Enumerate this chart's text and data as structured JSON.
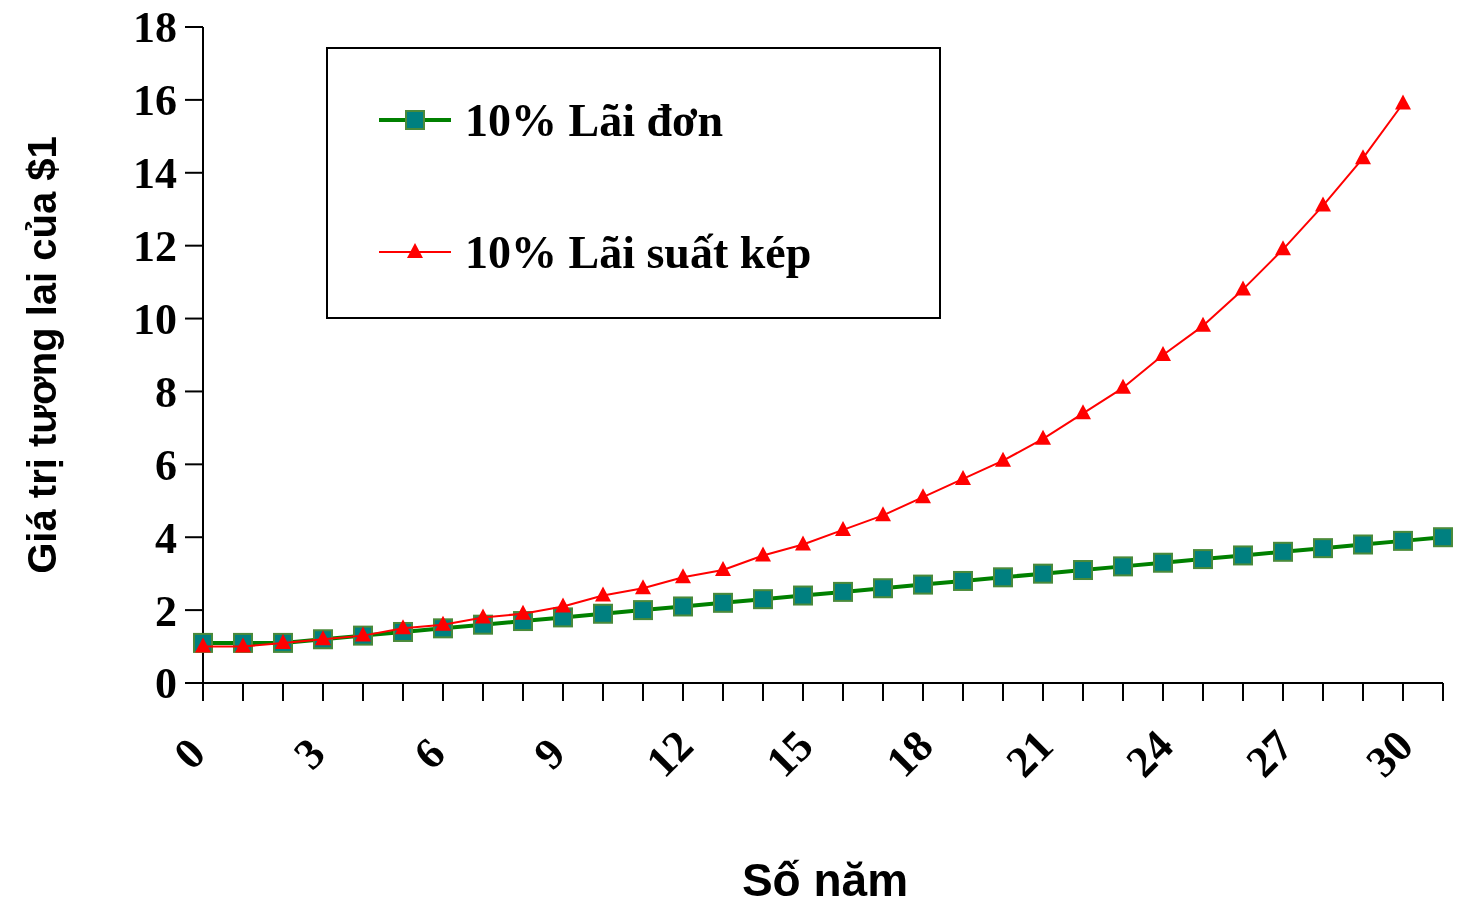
{
  "chart_data": {
    "type": "line",
    "xlabel": "Số năm",
    "ylabel": "Giá trị tương lai của $1",
    "categories": [
      "0",
      null,
      null,
      "3",
      null,
      null,
      "6",
      null,
      null,
      "9",
      null,
      null,
      "12",
      null,
      null,
      "15",
      null,
      null,
      "18",
      null,
      null,
      "21",
      null,
      null,
      "24",
      null,
      null,
      "27",
      null,
      null,
      "30",
      null
    ],
    "series": [
      {
        "name": "10% Lãi đơn",
        "color": "#008080",
        "marker": "square",
        "values": [
          1.1,
          1.1,
          1.1,
          1.2,
          1.3,
          1.4,
          1.5,
          1.6,
          1.7,
          1.8,
          1.9,
          2.0,
          2.1,
          2.2,
          2.3,
          2.4,
          2.5,
          2.6,
          2.7,
          2.8,
          2.9,
          3.0,
          3.1,
          3.2,
          3.3,
          3.4,
          3.5,
          3.6,
          3.7,
          3.8,
          3.9,
          4.0
        ]
      },
      {
        "name": "10% Lãi suất kép",
        "color": "#ff0000",
        "marker": "triangle",
        "values": [
          1.0,
          1.0,
          1.1,
          1.2,
          1.3,
          1.5,
          1.6,
          1.8,
          1.9,
          2.1,
          2.4,
          2.6,
          2.9,
          3.1,
          3.5,
          3.8,
          4.2,
          4.6,
          5.1,
          5.6,
          6.1,
          6.7,
          7.4,
          8.1,
          9.0,
          9.8,
          10.8,
          11.9,
          13.1,
          14.4,
          15.9,
          null
        ]
      }
    ],
    "ylim": [
      0,
      18
    ],
    "yticks": [
      0,
      2,
      4,
      6,
      8,
      10,
      12,
      14,
      16,
      18
    ],
    "legend": "top left",
    "grid": false
  }
}
